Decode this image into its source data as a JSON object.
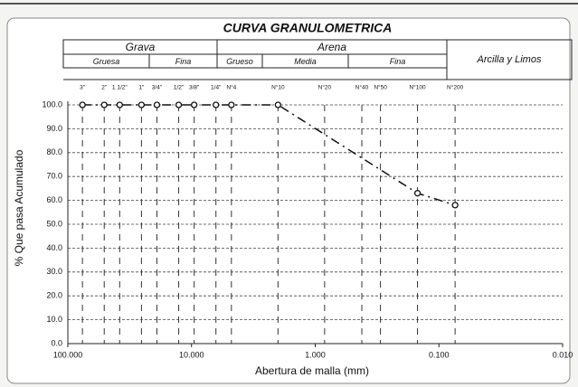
{
  "chart_data": {
    "type": "line",
    "title": "CURVA GRANULOMETRICA",
    "zones": [
      {
        "name": "Grava",
        "parts": [
          "Gruesa",
          "Fina"
        ]
      },
      {
        "name": "Arena",
        "parts": [
          "Grueso",
          "Media",
          "Fina"
        ]
      },
      {
        "name": "Arcilla y Limos",
        "parts": []
      }
    ],
    "x_label": "Abertura de malla (mm)",
    "y_label": "% Que pasa Acumulado",
    "xscale": "log",
    "x_reversed": true,
    "xlim": [
      100,
      0.01
    ],
    "ylim": [
      0,
      100
    ],
    "xticks": [
      {
        "value": 100,
        "label": "100.000"
      },
      {
        "value": 10,
        "label": "10.000"
      },
      {
        "value": 1,
        "label": "1.000"
      },
      {
        "value": 0.1,
        "label": "0.100"
      },
      {
        "value": 0.01,
        "label": "0.010"
      }
    ],
    "yticks": [
      {
        "value": 0,
        "label": "0.0"
      },
      {
        "value": 10,
        "label": "10.0"
      },
      {
        "value": 20,
        "label": "20.0"
      },
      {
        "value": 30,
        "label": "30.0"
      },
      {
        "value": 40,
        "label": "40.0"
      },
      {
        "value": 50,
        "label": "50.0"
      },
      {
        "value": 60,
        "label": "60.0"
      },
      {
        "value": 70,
        "label": "70.0"
      },
      {
        "value": 80,
        "label": "80.0"
      },
      {
        "value": 90,
        "label": "90.0"
      },
      {
        "value": 100,
        "label": "100.0"
      }
    ],
    "sieve_ticks": [
      {
        "value": 76.2,
        "label": "3\""
      },
      {
        "value": 50.8,
        "label": "2\""
      },
      {
        "value": 38.1,
        "label": "1 1/2\""
      },
      {
        "value": 25.4,
        "label": "1\""
      },
      {
        "value": 19.05,
        "label": "3/4\""
      },
      {
        "value": 12.7,
        "label": "1/2\""
      },
      {
        "value": 9.525,
        "label": "3/8\""
      },
      {
        "value": 6.35,
        "label": "1/4\""
      },
      {
        "value": 4.76,
        "label": "N°4"
      },
      {
        "value": 2.0,
        "label": "N°10"
      },
      {
        "value": 0.84,
        "label": "N°20"
      },
      {
        "value": 0.42,
        "label": "N°40"
      },
      {
        "value": 0.297,
        "label": "N°50"
      },
      {
        "value": 0.149,
        "label": "N°100"
      },
      {
        "value": 0.074,
        "label": "N°200"
      }
    ],
    "grid": true,
    "series": [
      {
        "color": "#111111",
        "x": [
          76.2,
          50.8,
          38.1,
          25.4,
          19.05,
          12.7,
          9.525,
          6.35,
          4.76,
          2.0,
          0.149,
          0.074
        ],
        "values": [
          100,
          100,
          100,
          100,
          100,
          100,
          100,
          100,
          100,
          100,
          63,
          58
        ]
      }
    ]
  }
}
